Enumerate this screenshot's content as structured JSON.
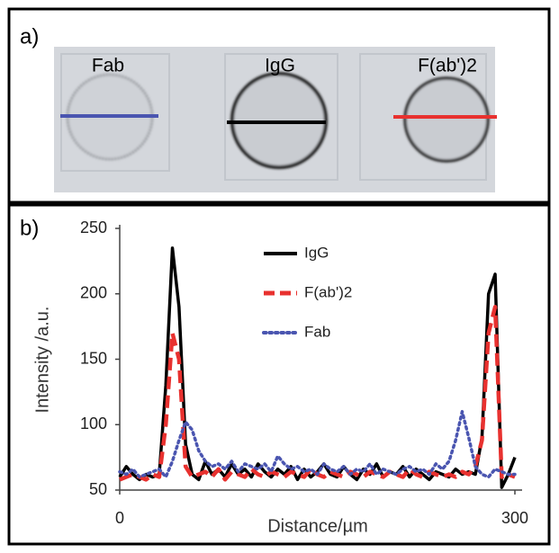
{
  "panel_a": {
    "label": "a)",
    "samples": [
      "Fab",
      "IgG",
      "F(ab')2"
    ]
  },
  "panel_b": {
    "label": "b)"
  },
  "chart_data": {
    "type": "line",
    "xlabel": "Distance/µm",
    "ylabel": "Intensity /a.u.",
    "x": [
      0,
      5,
      10,
      15,
      20,
      25,
      30,
      35,
      40,
      45,
      50,
      55,
      60,
      65,
      70,
      75,
      80,
      85,
      90,
      95,
      100,
      105,
      110,
      115,
      120,
      125,
      130,
      135,
      140,
      145,
      150,
      155,
      160,
      165,
      170,
      175,
      180,
      185,
      190,
      195,
      200,
      205,
      210,
      215,
      220,
      225,
      230,
      235,
      240,
      245,
      250,
      255,
      260,
      265,
      270,
      275,
      280,
      285,
      290,
      295,
      300
    ],
    "series": [
      {
        "name": "IgG",
        "color": "#000000",
        "dash": "solid",
        "values": [
          60,
          68,
          62,
          58,
          62,
          60,
          62,
          130,
          235,
          190,
          85,
          62,
          58,
          72,
          62,
          66,
          60,
          70,
          62,
          66,
          60,
          70,
          64,
          60,
          66,
          62,
          68,
          58,
          66,
          60,
          64,
          70,
          62,
          60,
          68,
          62,
          58,
          66,
          62,
          70,
          60,
          64,
          62,
          68,
          60,
          66,
          62,
          58,
          64,
          62,
          60,
          66,
          62,
          64,
          62,
          90,
          200,
          215,
          52,
          62,
          75
        ]
      },
      {
        "name": "F(ab')2",
        "color": "#e8312f",
        "dash": "dashed",
        "values": [
          58,
          60,
          62,
          60,
          58,
          62,
          60,
          100,
          170,
          150,
          68,
          60,
          62,
          64,
          60,
          66,
          58,
          64,
          62,
          60,
          66,
          62,
          60,
          64,
          62,
          60,
          64,
          62,
          60,
          66,
          62,
          60,
          64,
          62,
          60,
          64,
          62,
          60,
          64,
          62,
          60,
          64,
          62,
          60,
          66,
          62,
          60,
          64,
          62,
          60,
          62,
          60,
          64,
          62,
          68,
          88,
          170,
          190,
          60,
          62,
          60
        ]
      },
      {
        "name": "Fab",
        "color": "#4a55b0",
        "dash": "dotted",
        "values": [
          64,
          62,
          66,
          60,
          62,
          64,
          66,
          60,
          72,
          88,
          102,
          96,
          80,
          72,
          68,
          70,
          66,
          72,
          64,
          70,
          68,
          66,
          70,
          64,
          76,
          70,
          66,
          68,
          64,
          66,
          62,
          70,
          66,
          64,
          68,
          62,
          66,
          64,
          70,
          62,
          66,
          64,
          62,
          66,
          68,
          64,
          66,
          62,
          70,
          66,
          72,
          88,
          110,
          90,
          68,
          62,
          60,
          66,
          64,
          62,
          62
        ]
      }
    ],
    "xlim": [
      0,
      300
    ],
    "xticks": [
      0,
      300
    ],
    "ylim": [
      50,
      250
    ],
    "yticks": [
      50,
      100,
      150,
      200,
      250
    ],
    "grid": false,
    "legend": "top"
  }
}
